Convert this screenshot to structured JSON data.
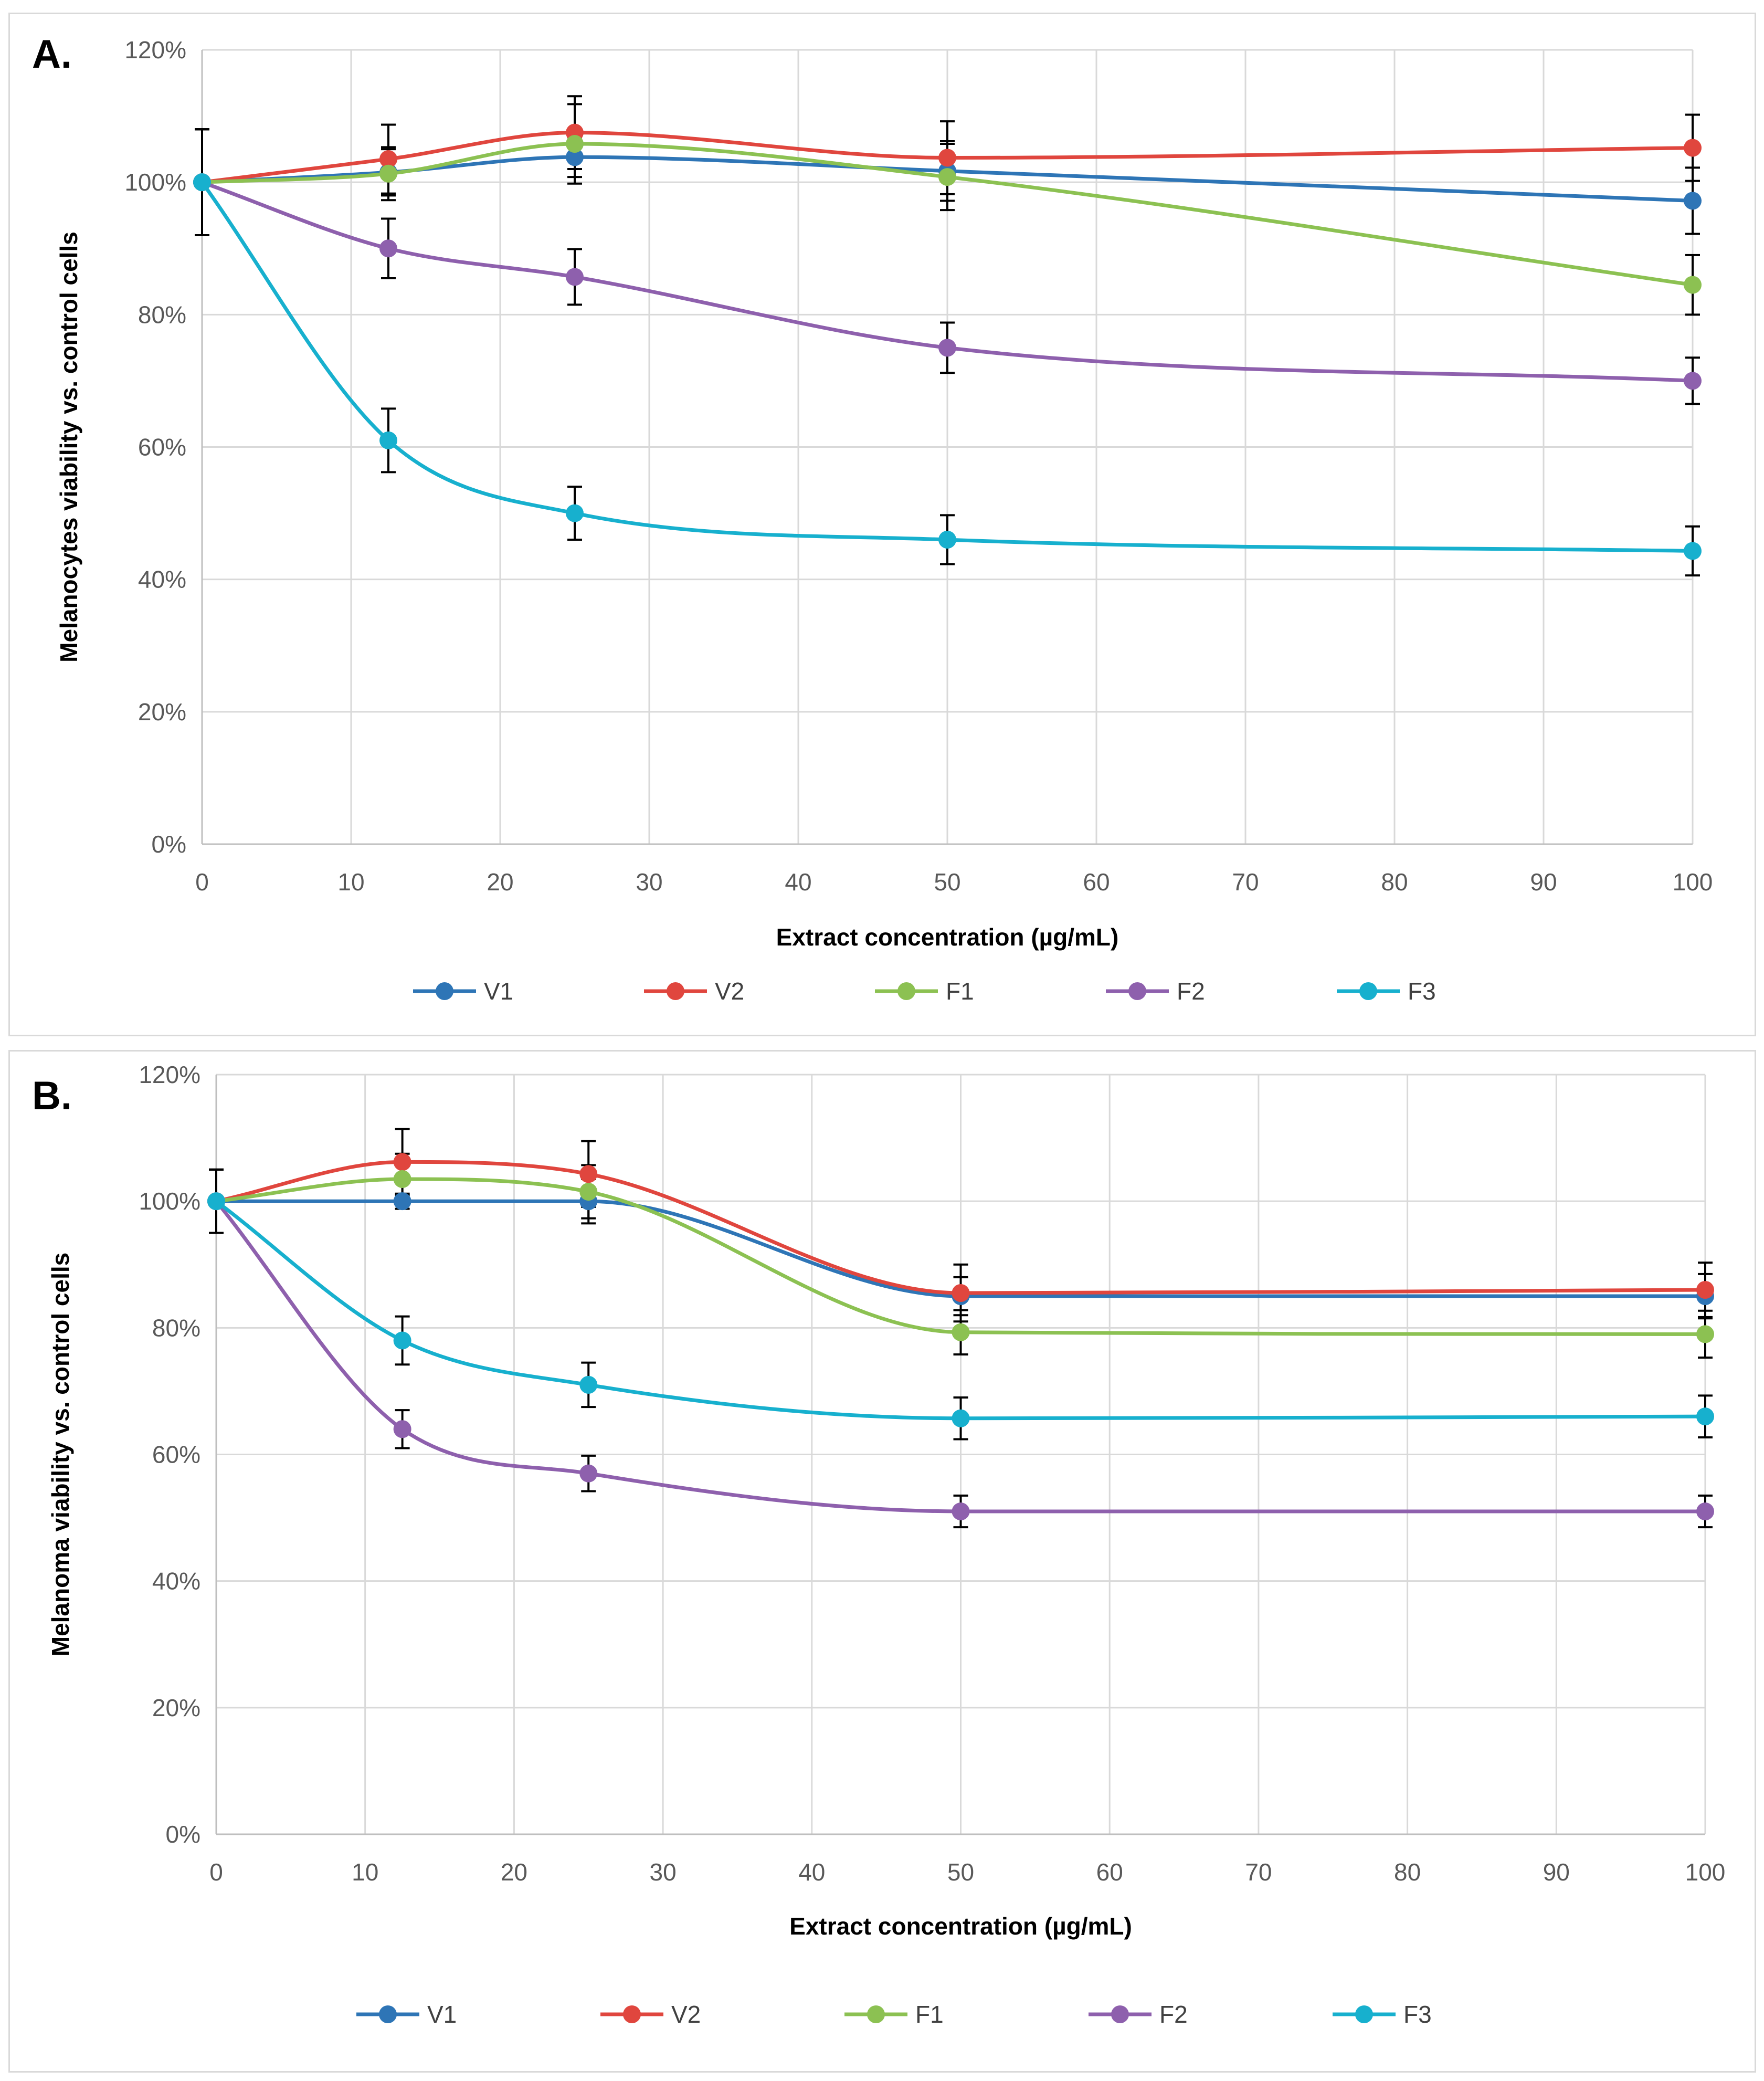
{
  "chart_data": [
    {
      "type": "line",
      "panel_label": "A.",
      "ylabel": "Melanocytes  viability vs. control cells",
      "xlabel": "Extract concentration (µg/mL)",
      "xlim": [
        0,
        100
      ],
      "ylim": [
        0,
        1.2
      ],
      "x_ticks": [
        0,
        10,
        20,
        30,
        40,
        50,
        60,
        70,
        80,
        90,
        100
      ],
      "x_tick_labels": [
        "0",
        "10",
        "20",
        "30",
        "40",
        "50",
        "60",
        "70",
        "80",
        "90",
        "100"
      ],
      "y_ticks": [
        0,
        0.2,
        0.4,
        0.6,
        0.8,
        1.0,
        1.2
      ],
      "y_tick_labels": [
        "0%",
        "20%",
        "40%",
        "60%",
        "80%",
        "100%",
        "120%"
      ],
      "grid": "vertical and horizontal",
      "legend": "bottom",
      "x": [
        0,
        12.5,
        25,
        50,
        100
      ],
      "series": [
        {
          "name": "V1",
          "color": "#2e75b6",
          "values": [
            1.0,
            1.015,
            1.038,
            1.017,
            0.972
          ],
          "errors": [
            0.08,
            0.035,
            0.03,
            0.045,
            0.05
          ]
        },
        {
          "name": "V2",
          "color": "#e0463e",
          "values": [
            1.0,
            1.035,
            1.075,
            1.037,
            1.052
          ],
          "errors": [
            0.08,
            0.052,
            0.055,
            0.055,
            0.05
          ]
        },
        {
          "name": "F1",
          "color": "#8cc152",
          "values": [
            1.0,
            1.013,
            1.058,
            1.008,
            0.845
          ],
          "errors": [
            0.08,
            0.04,
            0.06,
            0.05,
            0.045
          ]
        },
        {
          "name": "F2",
          "color": "#8e60ad",
          "values": [
            1.0,
            0.9,
            0.857,
            0.75,
            0.7
          ],
          "errors": [
            0.08,
            0.045,
            0.042,
            0.038,
            0.035
          ]
        },
        {
          "name": "F3",
          "color": "#17b0ce",
          "values": [
            1.0,
            0.61,
            0.5,
            0.46,
            0.443
          ],
          "errors": [
            0.08,
            0.048,
            0.04,
            0.037,
            0.037
          ]
        }
      ]
    },
    {
      "type": "line",
      "panel_label": "B.",
      "ylabel": "Melanoma viability vs. control cells",
      "xlabel": "Extract concentration (µg/mL)",
      "xlim": [
        0,
        100
      ],
      "ylim": [
        0,
        1.2
      ],
      "x_ticks": [
        0,
        10,
        20,
        30,
        40,
        50,
        60,
        70,
        80,
        90,
        100
      ],
      "x_tick_labels": [
        "0",
        "10",
        "20",
        "30",
        "40",
        "50",
        "60",
        "70",
        "80",
        "90",
        "100"
      ],
      "y_ticks": [
        0,
        0.2,
        0.4,
        0.6,
        0.8,
        1.0,
        1.2
      ],
      "y_tick_labels": [
        "0%",
        "20%",
        "40%",
        "60%",
        "80%",
        "100%",
        "120%"
      ],
      "grid": "vertical and horizontal",
      "legend": "bottom",
      "x": [
        0,
        12.5,
        25,
        50,
        100
      ],
      "series": [
        {
          "name": "V1",
          "color": "#2e75b6",
          "values": [
            1.0,
            1.0,
            1.0,
            0.85,
            0.85
          ],
          "errors": [
            0.05,
            0.012,
            0.035,
            0.03,
            0.035
          ]
        },
        {
          "name": "V2",
          "color": "#e0463e",
          "values": [
            1.0,
            1.062,
            1.043,
            0.855,
            0.86
          ],
          "errors": [
            0.05,
            0.052,
            0.052,
            0.045,
            0.043
          ]
        },
        {
          "name": "F1",
          "color": "#8cc152",
          "values": [
            1.0,
            1.035,
            1.015,
            0.793,
            0.79
          ],
          "errors": [
            0.05,
            0.04,
            0.042,
            0.035,
            0.037
          ]
        },
        {
          "name": "F2",
          "color": "#8e60ad",
          "values": [
            1.0,
            0.64,
            0.57,
            0.51,
            0.51
          ],
          "errors": [
            0.05,
            0.03,
            0.028,
            0.025,
            0.025
          ]
        },
        {
          "name": "F3",
          "color": "#17b0ce",
          "values": [
            1.0,
            0.78,
            0.71,
            0.657,
            0.66
          ],
          "errors": [
            0.05,
            0.038,
            0.035,
            0.033,
            0.033
          ]
        }
      ]
    }
  ]
}
